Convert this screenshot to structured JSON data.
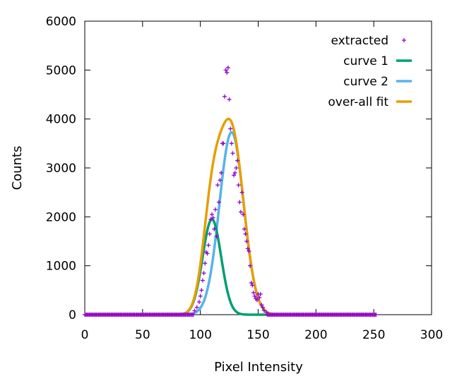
{
  "chart_data": {
    "type": "line",
    "title": "",
    "xlabel": "Pixel Intensity",
    "ylabel": "Counts",
    "xlim": [
      0,
      300
    ],
    "ylim": [
      0,
      6000
    ],
    "xticks": [
      0,
      50,
      100,
      150,
      200,
      250,
      300
    ],
    "yticks": [
      0,
      1000,
      2000,
      3000,
      4000,
      5000,
      6000
    ],
    "grid": false,
    "legend_position": "top-right",
    "series": [
      {
        "name": "extracted",
        "style": "points",
        "color": "#9400d3",
        "x": [
          95,
          97,
          99,
          100,
          101,
          102,
          103,
          104,
          105,
          106,
          107,
          108,
          109,
          110,
          111,
          112,
          113,
          114,
          115,
          116,
          117,
          118,
          119,
          120,
          121,
          122,
          123,
          124,
          125,
          126,
          127,
          128,
          129,
          130,
          131,
          132,
          133,
          134,
          135,
          136,
          137,
          138,
          139,
          140,
          141,
          142,
          143,
          144,
          145,
          146,
          147,
          148,
          149,
          150,
          151,
          152,
          153,
          154,
          155,
          157
        ],
        "y": [
          80,
          150,
          260,
          380,
          500,
          700,
          850,
          1050,
          1280,
          1250,
          1420,
          1650,
          1950,
          2050,
          1980,
          1750,
          2150,
          1600,
          2650,
          2300,
          2750,
          2900,
          3500,
          3500,
          4460,
          5000,
          4950,
          5050,
          4400,
          3800,
          3500,
          3300,
          2850,
          2900,
          3000,
          3150,
          2650,
          2300,
          2100,
          2500,
          2050,
          1750,
          1650,
          1500,
          1350,
          1300,
          1000,
          650,
          600,
          450,
          380,
          330,
          300,
          420,
          350,
          420,
          200,
          150,
          90,
          50
        ]
      },
      {
        "name": "curve 1",
        "style": "line",
        "color": "#009e73",
        "amplitude": 1950,
        "center": 110,
        "sigma": 8.0
      },
      {
        "name": "curve 2",
        "style": "line",
        "color": "#56b4e9",
        "amplitude": 3730,
        "center": 127,
        "sigma": 10.5
      },
      {
        "name": "over-all fit",
        "style": "line",
        "color": "#e69f00",
        "components": [
          "curve 1",
          "curve 2"
        ]
      }
    ]
  }
}
